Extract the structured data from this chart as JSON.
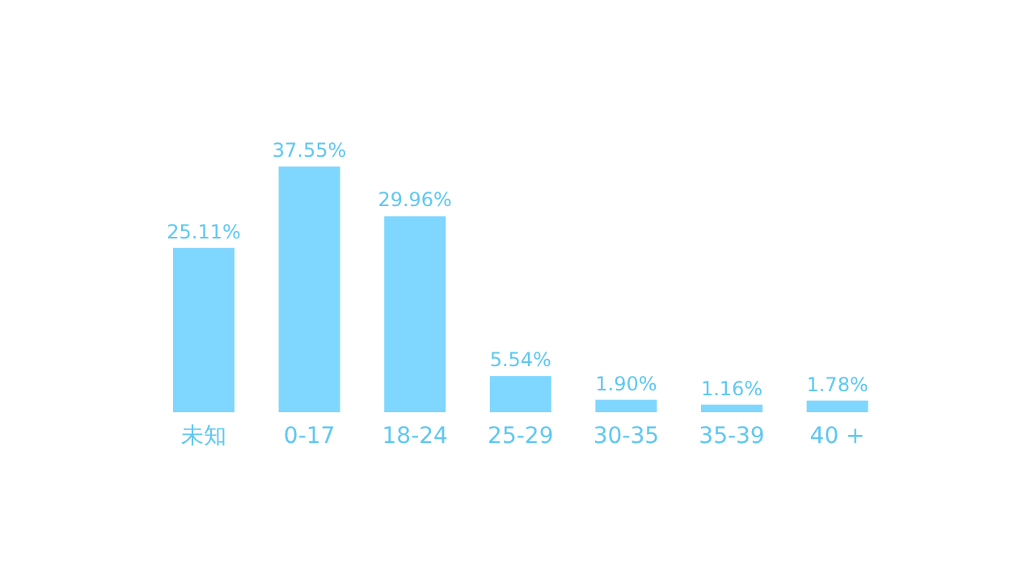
{
  "chart_data": {
    "type": "bar",
    "categories": [
      "未知",
      "0-17",
      "18-24",
      "25-29",
      "30-35",
      "35-39",
      "40 +"
    ],
    "values": [
      25.11,
      37.55,
      29.96,
      5.54,
      1.9,
      1.16,
      1.78
    ],
    "value_labels": [
      "25.11%",
      "37.55%",
      "29.96%",
      "5.54%",
      "1.90%",
      "1.16%",
      "1.78%"
    ],
    "color": "#7fd6ff"
  }
}
